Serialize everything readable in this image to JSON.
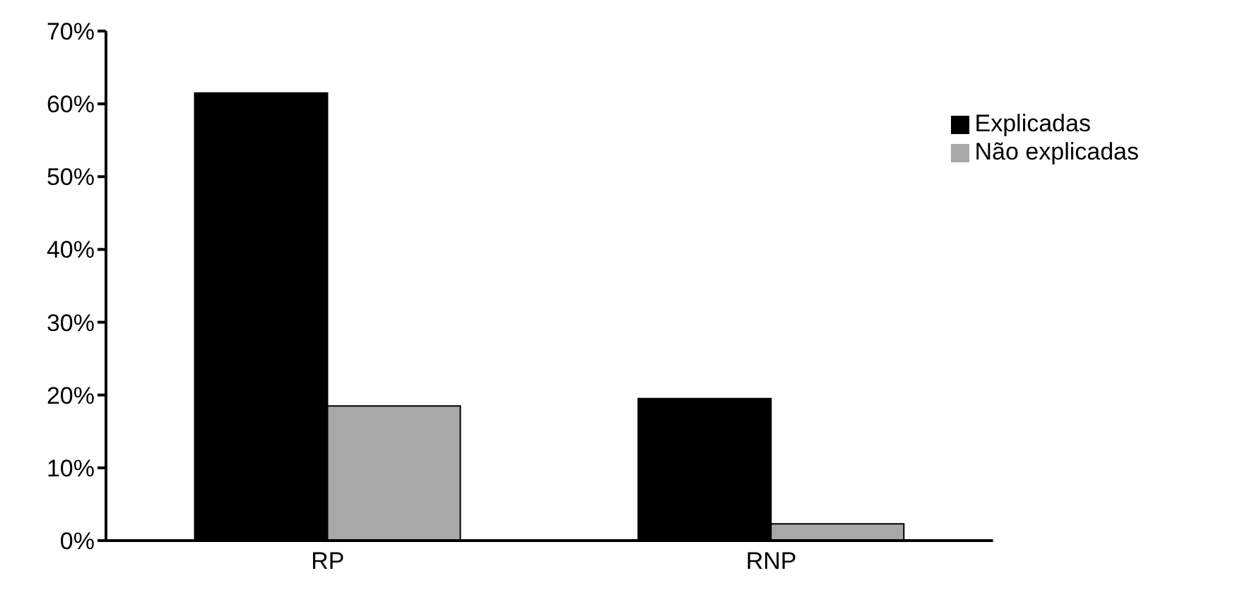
{
  "chart_data": {
    "type": "bar",
    "categories": [
      "RP",
      "RNP"
    ],
    "series": [
      {
        "name": "Explicadas",
        "color": "#000000",
        "values": [
          61.5,
          19.5
        ]
      },
      {
        "name": "Não explicadas",
        "color": "#a8a8a8",
        "values": [
          18.5,
          2.3
        ]
      }
    ],
    "ylim": [
      0,
      70
    ],
    "yticks": [
      {
        "value": 0,
        "label": "0%"
      },
      {
        "value": 10,
        "label": "10%"
      },
      {
        "value": 20,
        "label": "20%"
      },
      {
        "value": 30,
        "label": "30%"
      },
      {
        "value": 40,
        "label": "40%"
      },
      {
        "value": 50,
        "label": "50%"
      },
      {
        "value": 60,
        "label": "60%"
      },
      {
        "value": 70,
        "label": "70%"
      }
    ],
    "grid": false,
    "legend": "top right"
  }
}
